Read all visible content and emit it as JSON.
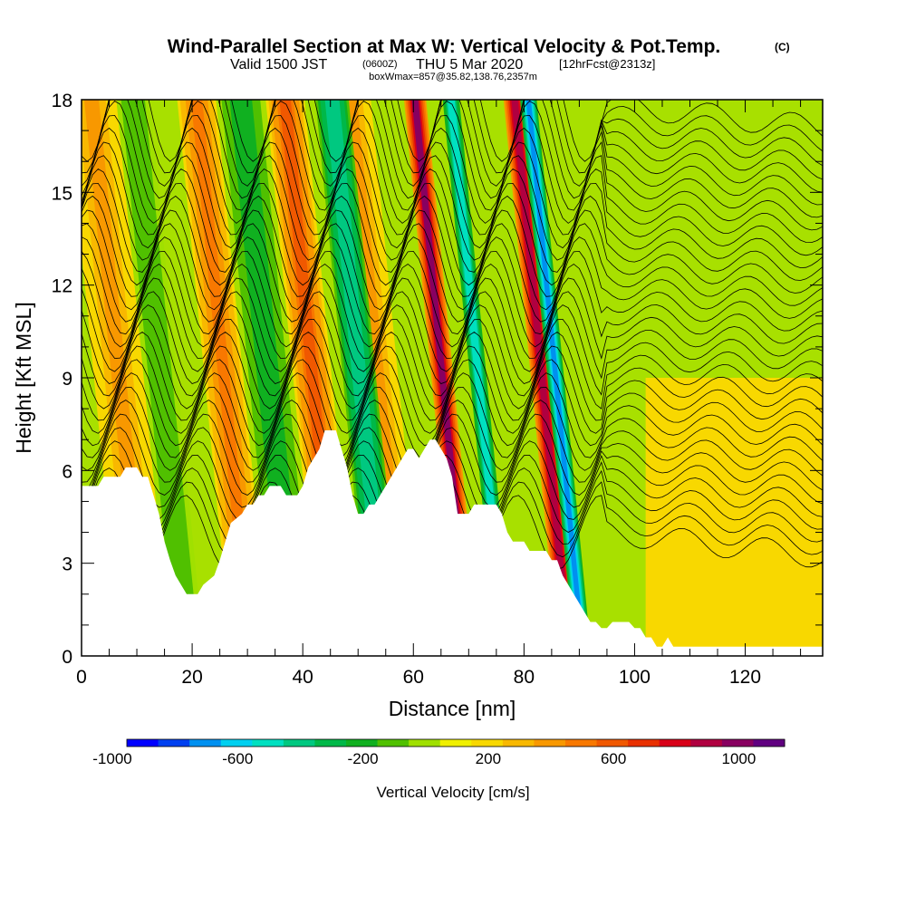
{
  "header": {
    "title_main": "Wind-Parallel Section at Max W: Vertical Velocity & Pot.Temp.",
    "title_mark": "(C)",
    "valid_a": "Valid 1500 JST",
    "valid_b": "(0600Z)",
    "valid_c": "THU 5 Mar 2020",
    "valid_d": "[12hrFcst@2313z]",
    "subline": "boxWmax=857@35.82,138.76,2357m"
  },
  "chart_data": {
    "type": "heatmap",
    "xlabel": "Distance [nm]",
    "ylabel": "Height [Kft MSL]",
    "xlim": [
      0,
      134
    ],
    "ylim": [
      0,
      18
    ],
    "x_ticks": [
      0,
      20,
      40,
      60,
      80,
      100,
      120
    ],
    "y_ticks": [
      0,
      3,
      6,
      9,
      12,
      15,
      18
    ],
    "grid": false,
    "colorbar": {
      "title": "Vertical Velocity [cm/s]",
      "min": -1000,
      "max": 1100,
      "step": 100,
      "tick_labels": [
        "-1000",
        "-600",
        "-200",
        "200",
        "600",
        "1000"
      ],
      "tick_values": [
        -1000,
        -600,
        -200,
        200,
        600,
        1000
      ],
      "colors": [
        "#0000ff",
        "#0040f0",
        "#0090f0",
        "#00d0f0",
        "#00e0c0",
        "#00c880",
        "#00b848",
        "#10b020",
        "#50c000",
        "#a0e000",
        "#f0f000",
        "#f8d800",
        "#f8b800",
        "#f89800",
        "#f87800",
        "#f05800",
        "#e83000",
        "#d80018",
        "#b00040",
        "#880060",
        "#600080"
      ]
    },
    "terrain_kft": [
      [
        0,
        5.5
      ],
      [
        3,
        5.5
      ],
      [
        4,
        5.8
      ],
      [
        7,
        5.8
      ],
      [
        8,
        6.1
      ],
      [
        10,
        6.1
      ],
      [
        11,
        5.8
      ],
      [
        12,
        5.8
      ],
      [
        13,
        5.2
      ],
      [
        14,
        4.6
      ],
      [
        15,
        3.7
      ],
      [
        16,
        3.1
      ],
      [
        17,
        2.6
      ],
      [
        18,
        2.3
      ],
      [
        19,
        2.0
      ],
      [
        21,
        2.0
      ],
      [
        22,
        2.3
      ],
      [
        24,
        2.6
      ],
      [
        25,
        3.1
      ],
      [
        26,
        3.7
      ],
      [
        27,
        4.3
      ],
      [
        29,
        4.6
      ],
      [
        30,
        4.9
      ],
      [
        31,
        4.9
      ],
      [
        32,
        5.2
      ],
      [
        33,
        5.2
      ],
      [
        34,
        5.5
      ],
      [
        36,
        5.5
      ],
      [
        37,
        5.2
      ],
      [
        39,
        5.2
      ],
      [
        40,
        5.5
      ],
      [
        41,
        6.1
      ],
      [
        42,
        6.4
      ],
      [
        43,
        6.7
      ],
      [
        44,
        7.3
      ],
      [
        46,
        7.3
      ],
      [
        47,
        6.7
      ],
      [
        48,
        6.1
      ],
      [
        49,
        5.2
      ],
      [
        50,
        4.6
      ],
      [
        51,
        4.6
      ],
      [
        52,
        4.9
      ],
      [
        53,
        4.9
      ],
      [
        54,
        5.2
      ],
      [
        56,
        5.8
      ],
      [
        57,
        6.1
      ],
      [
        58,
        6.4
      ],
      [
        59,
        6.7
      ],
      [
        60,
        6.7
      ],
      [
        61,
        6.4
      ],
      [
        62,
        6.7
      ],
      [
        63,
        7.0
      ],
      [
        64,
        7.0
      ],
      [
        65,
        6.7
      ],
      [
        66,
        6.4
      ],
      [
        67,
        5.8
      ],
      [
        68,
        4.6
      ],
      [
        70,
        4.6
      ],
      [
        71,
        4.9
      ],
      [
        75,
        4.9
      ],
      [
        76,
        4.6
      ],
      [
        77,
        4.0
      ],
      [
        78,
        3.7
      ],
      [
        80,
        3.7
      ],
      [
        81,
        3.4
      ],
      [
        84,
        3.4
      ],
      [
        85,
        3.1
      ],
      [
        86,
        3.1
      ],
      [
        87,
        2.6
      ],
      [
        88,
        2.3
      ],
      [
        89,
        2.0
      ],
      [
        90,
        1.7
      ],
      [
        91,
        1.4
      ],
      [
        92,
        1.1
      ],
      [
        93,
        1.1
      ],
      [
        94,
        0.9
      ],
      [
        95,
        0.9
      ],
      [
        96,
        1.1
      ],
      [
        99,
        1.1
      ],
      [
        100,
        0.9
      ],
      [
        101,
        0.9
      ],
      [
        102,
        0.6
      ],
      [
        103,
        0.6
      ],
      [
        104,
        0.3
      ],
      [
        105,
        0.3
      ],
      [
        106,
        0.6
      ],
      [
        107,
        0.3
      ],
      [
        134,
        0.3
      ]
    ],
    "updrafts_cms": [
      {
        "x0": 5,
        "x1": 14,
        "w": 300
      },
      {
        "x0": 25,
        "x1": 32,
        "w": 400
      },
      {
        "x0": 41,
        "x1": 48,
        "w": 500
      },
      {
        "x0": 53,
        "x1": 60,
        "w": 300
      },
      {
        "x0": 66,
        "x1": 70,
        "w": 900
      },
      {
        "x0": 84,
        "x1": 88,
        "w": 850
      }
    ],
    "downdrafts_cms": [
      {
        "x0": 14,
        "x1": 20,
        "w": -200
      },
      {
        "x0": 33,
        "x1": 40,
        "w": -300
      },
      {
        "x0": 50,
        "x1": 56,
        "w": -500
      },
      {
        "x0": 73,
        "x1": 76,
        "w": -600
      },
      {
        "x0": 87,
        "x1": 90,
        "w": -800
      }
    ]
  }
}
